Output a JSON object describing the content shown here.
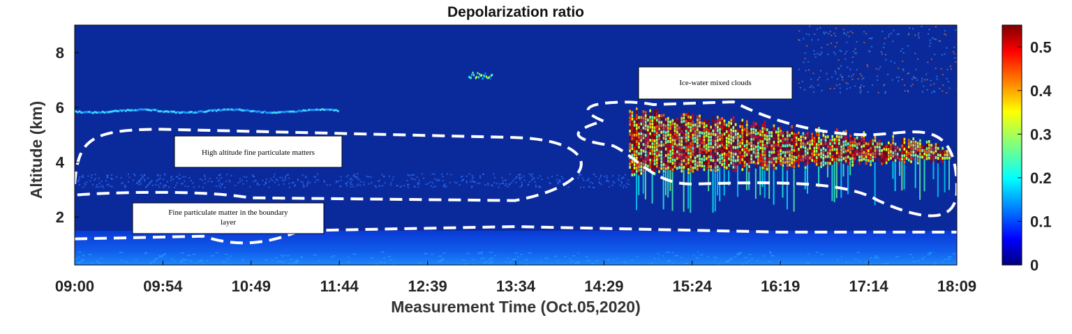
{
  "chart_data": {
    "type": "heatmap",
    "title": "Depolarization ratio",
    "xlabel": "Measurement Time (Oct.05,2020)",
    "ylabel": "Altitude (km)",
    "x_ticks": [
      "09:00",
      "09:54",
      "10:49",
      "11:44",
      "12:39",
      "13:34",
      "14:29",
      "15:24",
      "16:19",
      "17:14",
      "18:09"
    ],
    "xlim": [
      "09:00",
      "18:09"
    ],
    "y_ticks": [
      2,
      4,
      6,
      8
    ],
    "ylim": [
      0.25,
      9
    ],
    "colorbar": {
      "ticks": [
        0,
        0.1,
        0.2,
        0.3,
        0.4,
        0.5
      ],
      "range": [
        0,
        0.55
      ],
      "colormap": "jet"
    },
    "features": [
      {
        "name": "boundary_layer",
        "x_range": [
          "09:00",
          "18:09"
        ],
        "alt_range": [
          0.25,
          1.5
        ],
        "value": 0.13
      },
      {
        "name": "thin_layer",
        "x_range": [
          "09:00",
          "11:44"
        ],
        "alt": 5.9,
        "value": 0.22
      },
      {
        "name": "upper_cloud",
        "x_range": [
          "13:05",
          "13:20"
        ],
        "alt": 7.2,
        "value": 0.3
      },
      {
        "name": "mixed_cloud",
        "x_range": [
          "14:45",
          "18:05"
        ],
        "alt_range": [
          3.0,
          6.2
        ],
        "value": 0.52
      }
    ],
    "regions": [
      {
        "label": "High altitude fine particulate matters",
        "time_range": [
          "09:00",
          "14:29"
        ],
        "alt_range": [
          2.6,
          5.2
        ]
      },
      {
        "label": "Fine particulate matter in the boundary layer",
        "time_range": [
          "09:00",
          "18:09"
        ],
        "alt_range": [
          0.9,
          1.6
        ]
      },
      {
        "label": "Ice-water mixed clouds",
        "time_range": [
          "14:00",
          "18:09"
        ],
        "alt_range": [
          1.5,
          6.3
        ]
      }
    ],
    "annotations": [
      "Ice-water mixed clouds",
      "High altitude fine particulate matters",
      "Fine particulate matter in the boundary layer"
    ]
  },
  "colors": {
    "background": "#0a2a9c",
    "plot_frame": "#000000"
  }
}
